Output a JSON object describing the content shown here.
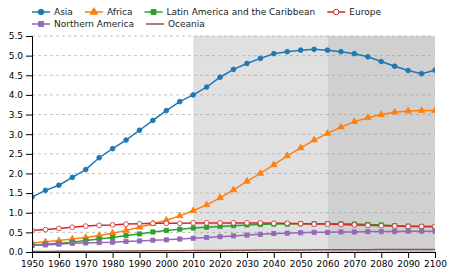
{
  "chart_data": {
    "type": "line",
    "x": [
      1950,
      1955,
      1960,
      1965,
      1970,
      1975,
      1980,
      1985,
      1990,
      1995,
      2000,
      2005,
      2010,
      2015,
      2020,
      2025,
      2030,
      2035,
      2040,
      2045,
      2050,
      2055,
      2060,
      2065,
      2070,
      2075,
      2080,
      2085,
      2090,
      2095,
      2100
    ],
    "xlim": [
      1950,
      2100
    ],
    "xticks": [
      1950,
      1960,
      1970,
      1980,
      1990,
      2000,
      2010,
      2020,
      2030,
      2040,
      2050,
      2060,
      2070,
      2080,
      2090,
      2100
    ],
    "ylim": [
      0.0,
      5.5
    ],
    "yticks": [
      {
        "value": 0.0,
        "label": "0.0"
      },
      0.5,
      {
        "value": 1.0,
        "label": "1.0"
      },
      1.5,
      {
        "value": 2.0,
        "label": "2.0"
      },
      2.5,
      {
        "value": 3.0,
        "label": "3.0"
      },
      3.5,
      {
        "value": 4.0,
        "label": "4.0"
      },
      4.5,
      {
        "value": 5.0,
        "label": "5.0"
      },
      5.5
    ],
    "grid": true,
    "legend": "upper left",
    "shade_regions": [
      {
        "start": 2010,
        "end": 2060,
        "color": "#e0e0e0"
      },
      {
        "start": 2060,
        "end": 2100,
        "color": "#d0d0d0"
      }
    ],
    "series": [
      {
        "name": "Asia",
        "marker": "circle",
        "values": [
          1.4,
          1.57,
          1.7,
          1.9,
          2.1,
          2.4,
          2.63,
          2.85,
          3.1,
          3.35,
          3.6,
          3.83,
          4.0,
          4.2,
          4.45,
          4.65,
          4.8,
          4.93,
          5.05,
          5.1,
          5.14,
          5.16,
          5.14,
          5.1,
          5.05,
          4.97,
          4.85,
          4.73,
          4.62,
          4.54,
          4.63
        ]
      },
      {
        "name": "Africa",
        "marker": "triangle",
        "values": [
          0.23,
          0.26,
          0.29,
          0.33,
          0.37,
          0.42,
          0.48,
          0.55,
          0.63,
          0.72,
          0.81,
          0.92,
          1.05,
          1.2,
          1.38,
          1.58,
          1.8,
          2.0,
          2.22,
          2.45,
          2.65,
          2.85,
          3.02,
          3.18,
          3.32,
          3.42,
          3.5,
          3.56,
          3.59,
          3.6,
          3.6
        ]
      },
      {
        "name": "Latin America and the Caribbean",
        "marker": "square",
        "values": [
          0.17,
          0.2,
          0.22,
          0.25,
          0.29,
          0.33,
          0.37,
          0.42,
          0.46,
          0.51,
          0.55,
          0.58,
          0.61,
          0.63,
          0.65,
          0.67,
          0.69,
          0.7,
          0.71,
          0.71,
          0.72,
          0.72,
          0.72,
          0.72,
          0.71,
          0.7,
          0.69,
          0.67,
          0.66,
          0.65,
          0.64
        ]
      },
      {
        "name": "Europe",
        "marker": "circle-open",
        "values": [
          0.55,
          0.57,
          0.6,
          0.63,
          0.66,
          0.68,
          0.69,
          0.71,
          0.72,
          0.73,
          0.73,
          0.73,
          0.74,
          0.74,
          0.74,
          0.74,
          0.74,
          0.74,
          0.73,
          0.73,
          0.72,
          0.71,
          0.71,
          0.7,
          0.69,
          0.68,
          0.67,
          0.66,
          0.65,
          0.65,
          0.65
        ]
      },
      {
        "name": "Northern America",
        "marker": "square",
        "values": [
          0.17,
          0.18,
          0.2,
          0.22,
          0.23,
          0.24,
          0.25,
          0.27,
          0.28,
          0.3,
          0.31,
          0.33,
          0.35,
          0.37,
          0.39,
          0.41,
          0.43,
          0.45,
          0.47,
          0.48,
          0.49,
          0.5,
          0.5,
          0.51,
          0.51,
          0.52,
          0.52,
          0.52,
          0.53,
          0.53,
          0.53
        ]
      },
      {
        "name": "Oceania",
        "marker": "none",
        "values": [
          0.013,
          0.015,
          0.016,
          0.018,
          0.019,
          0.021,
          0.023,
          0.025,
          0.027,
          0.03,
          0.031,
          0.033,
          0.036,
          0.038,
          0.041,
          0.043,
          0.046,
          0.048,
          0.05,
          0.052,
          0.054,
          0.055,
          0.057,
          0.058,
          0.059,
          0.06,
          0.061,
          0.062,
          0.062,
          0.063,
          0.063
        ]
      }
    ]
  }
}
